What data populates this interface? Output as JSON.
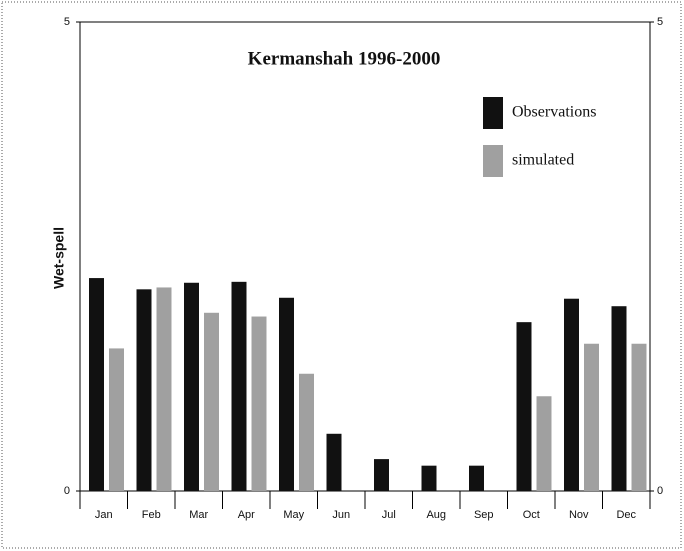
{
  "chart_data": {
    "type": "bar",
    "title": "Kermanshah 1996-2000",
    "ylabel": "Wet-spell",
    "categories": [
      "Jan",
      "Feb",
      "Mar",
      "Apr",
      "May",
      "Jun",
      "Jul",
      "Aug",
      "Sep",
      "Oct",
      "Nov",
      "Dec"
    ],
    "series": [
      {
        "name": "Observations",
        "color": "#111111",
        "values": [
          2.27,
          2.15,
          2.22,
          2.23,
          2.06,
          0.61,
          0.34,
          0.27,
          0.27,
          1.8,
          2.05,
          1.97
        ]
      },
      {
        "name": "simulated",
        "color": "#a0a0a0",
        "values": [
          1.52,
          2.17,
          1.9,
          1.86,
          1.25,
          0,
          0,
          0,
          0,
          1.01,
          1.57,
          1.57
        ]
      }
    ],
    "ylim": [
      0,
      5
    ],
    "yticks": [
      0,
      5
    ],
    "y2lim": [
      0,
      5
    ],
    "y2ticks": [
      0,
      5
    ],
    "legend": "upper right",
    "grid": false
  }
}
